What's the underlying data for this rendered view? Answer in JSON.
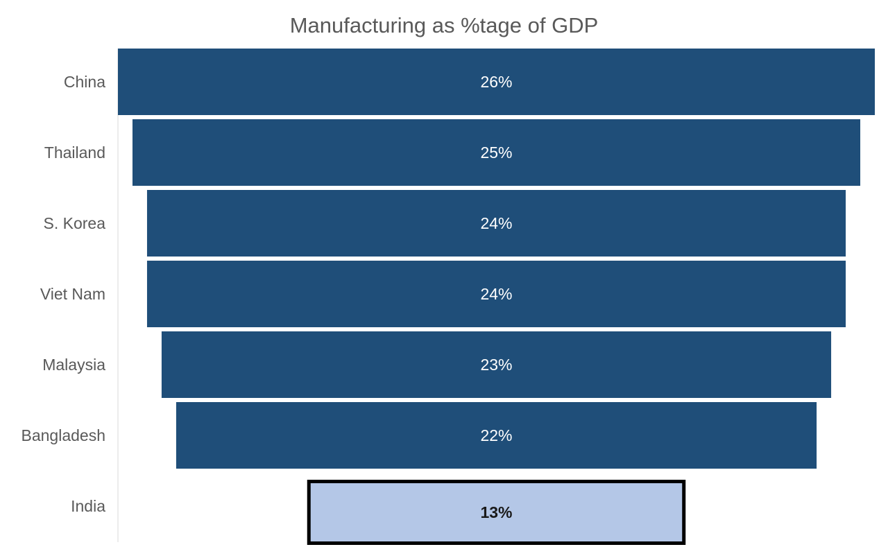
{
  "chart_data": {
    "type": "bar",
    "subtype": "funnel",
    "title": "Manufacturing as %tage of GDP",
    "xlabel": "",
    "ylabel": "",
    "categories": [
      "China",
      "Thailand",
      "S. Korea",
      "Viet Nam",
      "Malaysia",
      "Bangladesh",
      "India"
    ],
    "values": [
      26,
      25,
      24,
      24,
      23,
      22,
      13
    ],
    "labels": [
      "26%",
      "25%",
      "24%",
      "24%",
      "23%",
      "22%",
      "13%"
    ],
    "highlight_category": "India",
    "grid": false,
    "legend": "none",
    "colors": {
      "bar": "#1f4e79",
      "highlight_bar": "#b4c7e7",
      "highlight_border": "#000000",
      "label_text": "#ffffff",
      "highlight_label_text": "#1a1a1a",
      "axis_text": "#595959",
      "axis_line": "#d9d9d9"
    }
  }
}
